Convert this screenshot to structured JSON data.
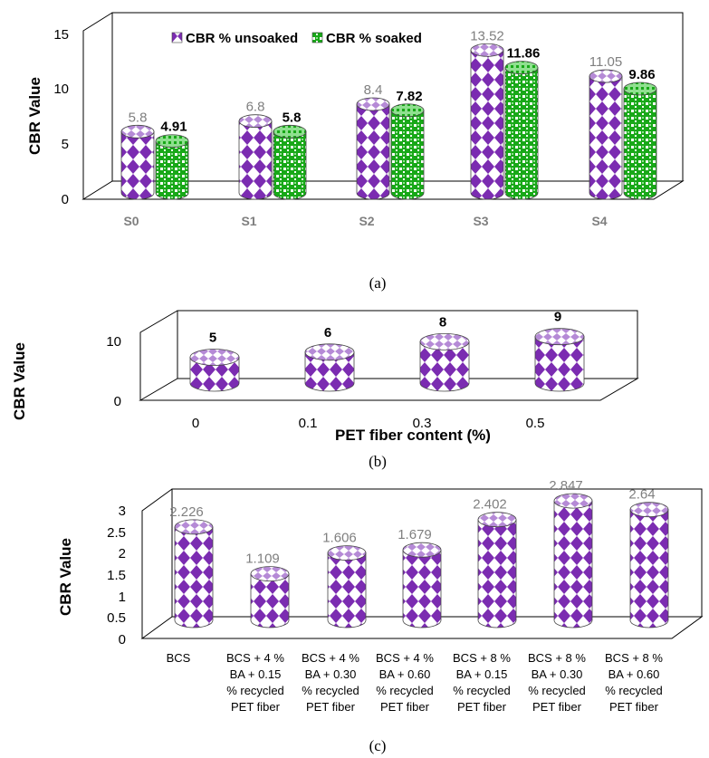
{
  "colors": {
    "purple": "#7b2cb1",
    "purple_light": "#b58ad6",
    "green": "#18a818",
    "green_light": "#8fe08f",
    "frame": "#000000",
    "tick_gray": "#7f7f7f",
    "label_dark": "#000000"
  },
  "chart_data": [
    {
      "id": "a",
      "type": "bar",
      "caption": "(a)",
      "title": "",
      "xlabel": "",
      "ylabel": "CBR Value",
      "ylim": [
        0,
        15
      ],
      "yticks": [
        "0",
        "5",
        "10",
        "15"
      ],
      "yticks_values": [
        0,
        5,
        10,
        15
      ],
      "categories": [
        "S0",
        "S1",
        "S2",
        "S3",
        "S4"
      ],
      "legend": [
        "CBR % unsoaked",
        "CBR % soaked"
      ],
      "series": [
        {
          "name": "CBR % unsoaked",
          "values": [
            5.8,
            6.8,
            8.4,
            13.52,
            11.05
          ],
          "labels": [
            "5.8",
            "6.8",
            "8.4",
            "13.52",
            "11.05"
          ]
        },
        {
          "name": "CBR % soaked",
          "values": [
            4.91,
            5.8,
            7.82,
            11.86,
            9.86
          ],
          "labels": [
            "4.91",
            "5.8",
            "7.82",
            "11.86",
            "9.86"
          ]
        }
      ]
    },
    {
      "id": "b",
      "type": "bar",
      "caption": "(b)",
      "title": "",
      "xlabel": "PET fiber content (%)",
      "ylabel": "CBR Value",
      "ylim": [
        0,
        10
      ],
      "yticks": [
        "0",
        "10"
      ],
      "yticks_values": [
        0,
        10
      ],
      "categories": [
        "0",
        "0.1",
        "0.3",
        "0.5"
      ],
      "series": [
        {
          "name": "CBR",
          "values": [
            5,
            6,
            8,
            9
          ],
          "labels": [
            "5",
            "6",
            "8",
            "9"
          ]
        }
      ]
    },
    {
      "id": "c",
      "type": "bar",
      "caption": "(c)",
      "title": "",
      "xlabel": "",
      "ylabel": "CBR Value",
      "ylim": [
        0,
        3
      ],
      "yticks": [
        "0",
        "0.5",
        "1",
        "1.5",
        "2",
        "2.5",
        "3"
      ],
      "yticks_values": [
        0,
        0.5,
        1,
        1.5,
        2,
        2.5,
        3
      ],
      "categories": [
        [
          "BCS"
        ],
        [
          "BCS + 4 %",
          "BA + 0.15",
          "% recycled",
          "PET fiber"
        ],
        [
          "BCS + 4 %",
          "BA + 0.30",
          "% recycled",
          "PET fiber"
        ],
        [
          "BCS + 4 %",
          "BA + 0.60",
          "% recycled",
          "PET fiber"
        ],
        [
          "BCS + 8 %",
          "BA + 0.15",
          "% recycled",
          "PET fiber"
        ],
        [
          "BCS + 8 %",
          "BA + 0.30",
          "% recycled",
          "PET fiber"
        ],
        [
          "BCS + 8 %",
          "BA + 0.60",
          "% recycled",
          "PET fiber"
        ]
      ],
      "series": [
        {
          "name": "CBR",
          "values": [
            2.226,
            1.109,
            1.606,
            1.679,
            2.402,
            2.847,
            2.64
          ],
          "labels": [
            "2.226",
            "1.109",
            "1.606",
            "1.679",
            "2.402",
            "2.847",
            "2.64"
          ]
        }
      ]
    }
  ]
}
